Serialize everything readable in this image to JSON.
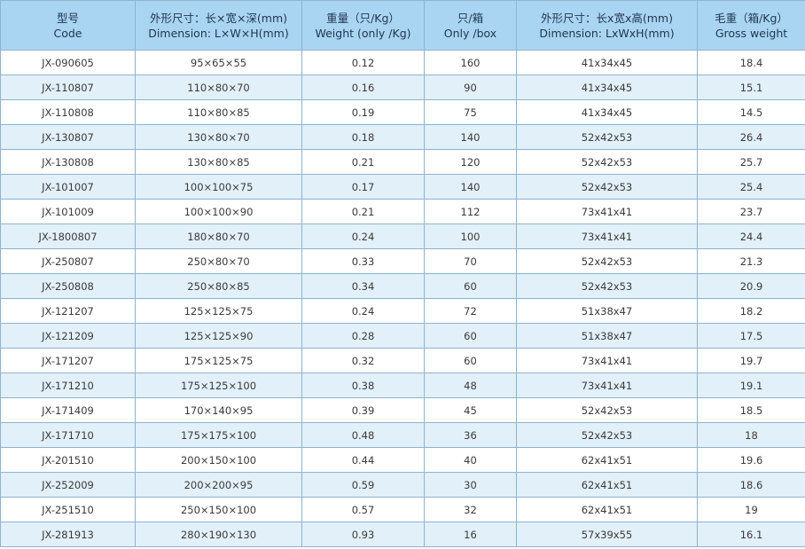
{
  "table": {
    "header": [
      [
        "型号",
        "Code"
      ],
      [
        "外形尺寸：长×宽×深(mm)",
        "Dimension: L×W×H(mm)"
      ],
      [
        "重量（只/Kg）",
        "Weight (only /Kg)"
      ],
      [
        "只/箱",
        "Only /box"
      ],
      [
        "外形尺寸：长x宽x高(mm)",
        "Dimension: LxWxH(mm)"
      ],
      [
        "毛重（箱/Kg）",
        "Gross weight"
      ]
    ],
    "rows": [
      [
        "JX-090605",
        "95×65×55",
        "0.12",
        "160",
        "41x34x45",
        "18.4"
      ],
      [
        "JX-110807",
        "110×80×70",
        "0.16",
        "90",
        "41x34x45",
        "15.1"
      ],
      [
        "JX-110808",
        "110×80×85",
        "0.19",
        "75",
        "41x34x45",
        "14.5"
      ],
      [
        "JX-130807",
        "130×80×70",
        "0.18",
        "140",
        "52x42x53",
        "26.4"
      ],
      [
        "JX-130808",
        "130×80×85",
        "0.21",
        "120",
        "52x42x53",
        "25.7"
      ],
      [
        "JX-101007",
        "100×100×75",
        "0.17",
        "140",
        "52x42x53",
        "25.4"
      ],
      [
        "JX-101009",
        "100×100×90",
        "0.21",
        "112",
        "73x41x41",
        "23.7"
      ],
      [
        "JX-1800807",
        "180×80×70",
        "0.24",
        "100",
        "73x41x41",
        "24.4"
      ],
      [
        "JX-250807",
        "250×80×70",
        "0.33",
        "70",
        "52x42x53",
        "21.3"
      ],
      [
        "JX-250808",
        "250×80×85",
        "0.34",
        "60",
        "52x42x53",
        "20.9"
      ],
      [
        "JX-121207",
        "125×125×75",
        "0.24",
        "72",
        "51x38x47",
        "18.2"
      ],
      [
        "JX-121209",
        "125×125×90",
        "0.28",
        "60",
        "51x38x47",
        "17.5"
      ],
      [
        "JX-171207",
        "175×125×75",
        "0.32",
        "60",
        "73x41x41",
        "19.7"
      ],
      [
        "JX-171210",
        "175×125×100",
        "0.38",
        "48",
        "73x41x41",
        "19.1"
      ],
      [
        "JX-171409",
        "170×140×95",
        "0.39",
        "45",
        "52x42x53",
        "18.5"
      ],
      [
        "JX-171710",
        "175×175×100",
        "0.48",
        "36",
        "52x42x53",
        "18"
      ],
      [
        "JX-201510",
        "200×150×100",
        "0.44",
        "40",
        "62x41x51",
        "19.6"
      ],
      [
        "JX-252009",
        "200×200×95",
        "0.59",
        "30",
        "62x41x51",
        "18.6"
      ],
      [
        "JX-251510",
        "250×150×100",
        "0.57",
        "32",
        "62x41x51",
        "19"
      ],
      [
        "JX-281913",
        "280×190×130",
        "0.93",
        "16",
        "57x39x55",
        "16.1"
      ]
    ]
  }
}
